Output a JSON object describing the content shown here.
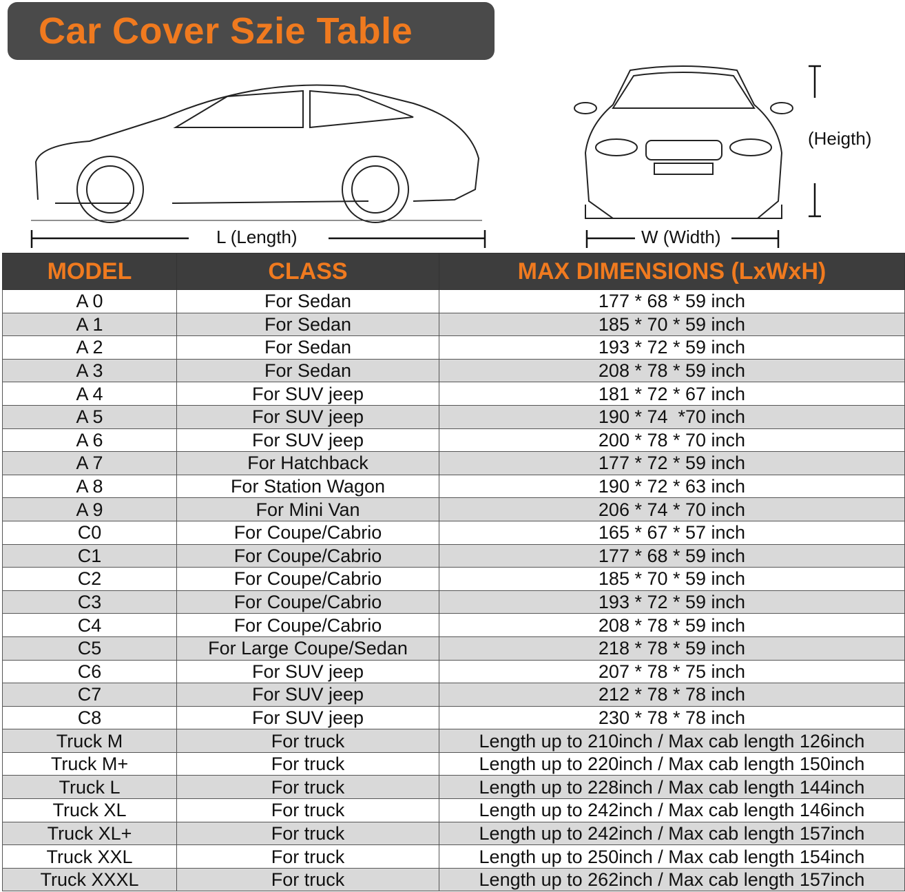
{
  "title": "Car Cover Szie Table",
  "labels": {
    "length": "L (Length)",
    "width": "W (Width)",
    "height": "(Heigth)"
  },
  "colors": {
    "accent": "#f07a1f",
    "header_bg": "#3d3d3d",
    "row_alt": "#d9d9d9"
  },
  "table": {
    "headers": [
      "MODEL",
      "CLASS",
      "MAX DIMENSIONS (LxWxH)"
    ],
    "rows": [
      [
        "A 0",
        "For Sedan",
        "177 * 68 * 59 inch"
      ],
      [
        "A 1",
        "For Sedan",
        "185 * 70 * 59 inch"
      ],
      [
        "A 2",
        "For Sedan",
        "193 * 72 * 59 inch"
      ],
      [
        "A 3",
        "For Sedan",
        "208 * 78 * 59 inch"
      ],
      [
        "A 4",
        "For SUV jeep",
        "181 * 72 * 67 inch"
      ],
      [
        "A 5",
        "For SUV jeep",
        "190 * 74  *70 inch"
      ],
      [
        "A 6",
        "For SUV jeep",
        "200 * 78 * 70 inch"
      ],
      [
        "A 7",
        "For Hatchback",
        "177 * 72 * 59 inch"
      ],
      [
        "A 8",
        "For Station Wagon",
        "190 * 72 * 63 inch"
      ],
      [
        "A 9",
        "For Mini Van",
        "206 * 74 * 70 inch"
      ],
      [
        "C0",
        "For Coupe/Cabrio",
        "165 * 67 * 57 inch"
      ],
      [
        "C1",
        "For Coupe/Cabrio",
        "177 * 68 * 59 inch"
      ],
      [
        "C2",
        "For Coupe/Cabrio",
        "185 * 70 * 59 inch"
      ],
      [
        "C3",
        "For Coupe/Cabrio",
        "193 * 72 * 59 inch"
      ],
      [
        "C4",
        "For Coupe/Cabrio",
        "208 * 78 * 59 inch"
      ],
      [
        "C5",
        "For Large Coupe/Sedan",
        "218 * 78 * 59 inch"
      ],
      [
        "C6",
        "For SUV jeep",
        "207 * 78 * 75 inch"
      ],
      [
        "C7",
        "For SUV jeep",
        "212 * 78 * 78 inch"
      ],
      [
        "C8",
        "For SUV jeep",
        "230 * 78 * 78 inch"
      ],
      [
        "Truck M",
        "For truck",
        "Length up to 210inch / Max cab length 126inch"
      ],
      [
        "Truck M+",
        "For truck",
        "Length up to 220inch / Max cab length 150inch"
      ],
      [
        "Truck L",
        "For truck",
        "Length up to 228inch / Max cab length 144inch"
      ],
      [
        "Truck XL",
        "For truck",
        "Length up to 242inch / Max cab length 146inch"
      ],
      [
        "Truck XL+",
        "For truck",
        "Length up to 242inch / Max cab length 157inch"
      ],
      [
        "Truck XXL",
        "For truck",
        "Length up to 250inch / Max cab length 154inch"
      ],
      [
        "Truck XXXL",
        "For truck",
        "Length up to 262inch / Max cab length 157inch"
      ]
    ]
  }
}
